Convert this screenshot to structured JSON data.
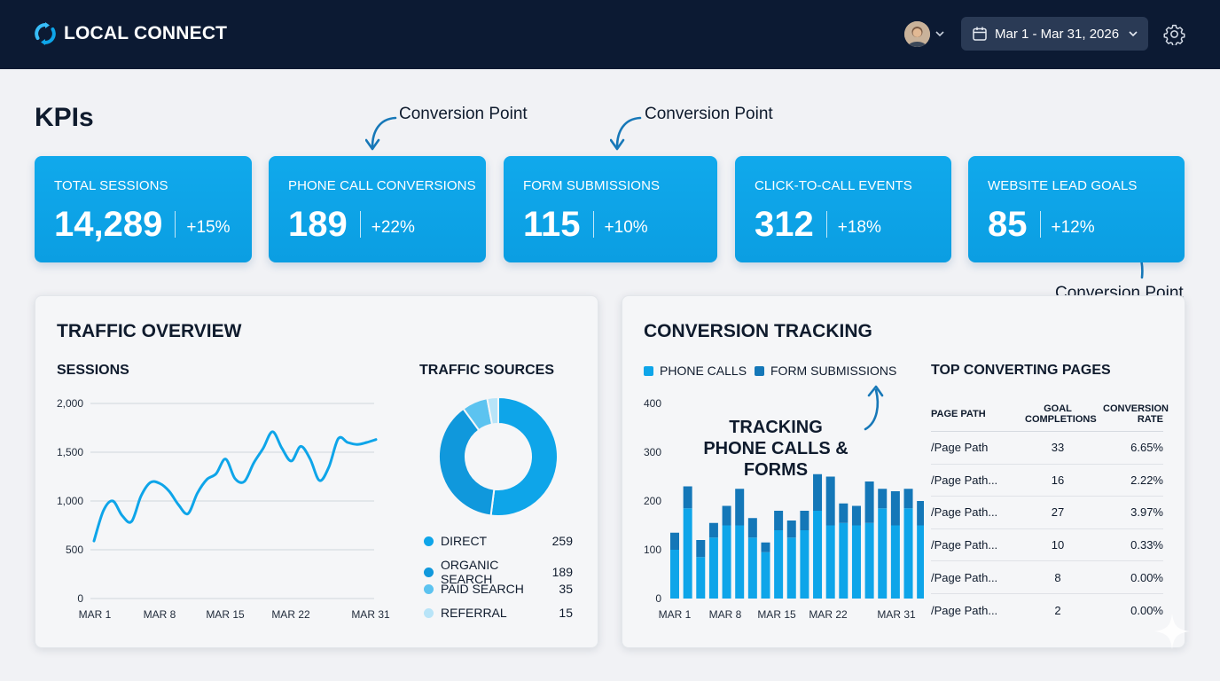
{
  "header": {
    "brand": "LOCAL CONNECT",
    "date_range": "Mar 1 - Mar 31, 2026",
    "user_avatar": "avatar",
    "icons": {
      "logo": "refresh-logo-icon",
      "calendar": "calendar-icon",
      "settings": "gear-icon",
      "caret": "chevron-down-icon"
    }
  },
  "kpis": {
    "heading": "KPIs",
    "annotation": "Conversion Point",
    "cards": [
      {
        "label": "TOTAL SESSIONS",
        "value": "14,289",
        "delta": "+15%"
      },
      {
        "label": "PHONE CALL CONVERSIONS",
        "value": "189",
        "delta": "+22%"
      },
      {
        "label": "FORM SUBMISSIONS",
        "value": "115",
        "delta": "+10%"
      },
      {
        "label": "CLICK-TO-CALL EVENTS",
        "value": "312",
        "delta": "+18%"
      },
      {
        "label": "WEBSITE LEAD GOALS",
        "value": "85",
        "delta": "+12%"
      }
    ]
  },
  "traffic": {
    "title": "TRAFFIC OVERVIEW",
    "sessions_title": "SESSIONS",
    "sources_title": "TRAFFIC SOURCES"
  },
  "conversion": {
    "title": "CONVERSION TRACKING",
    "legend": [
      "PHONE CALLS",
      "FORM SUBMISSIONS"
    ],
    "callout": "TRACKING PHONE CALLS & FORMS",
    "top_pages": {
      "title": "TOP CONVERTING PAGES",
      "headers": [
        "PAGE PATH",
        "GOAL COMPLETIONS",
        "CONVERSION RATE"
      ],
      "rows": [
        [
          "/Page Path",
          "33",
          "6.65%"
        ],
        [
          "/Page Path...",
          "16",
          "2.22%"
        ],
        [
          "/Page Path...",
          "27",
          "3.97%"
        ],
        [
          "/Page Path...",
          "10",
          "0.33%"
        ],
        [
          "/Page Path...",
          "8",
          "0.00%"
        ],
        [
          "/Page Path...",
          "2",
          "0.00%"
        ]
      ]
    }
  },
  "colors": {
    "accent": "#0ea5e9",
    "navy": "#0c1a33",
    "dark_blue": "#1477b8"
  },
  "chart_data": [
    {
      "type": "line",
      "title": "SESSIONS",
      "x": [
        1,
        2,
        3,
        4,
        5,
        6,
        7,
        8,
        9,
        10,
        11,
        12,
        13,
        14,
        15,
        16,
        17,
        18,
        19,
        20,
        21,
        22,
        23,
        24,
        25,
        26,
        27,
        28,
        29,
        30,
        31
      ],
      "values": [
        590,
        900,
        1000,
        850,
        790,
        1050,
        1190,
        1180,
        1100,
        960,
        870,
        1080,
        1220,
        1280,
        1430,
        1230,
        1200,
        1390,
        1540,
        1710,
        1540,
        1410,
        1560,
        1430,
        1210,
        1350,
        1640,
        1600,
        1580,
        1600,
        1630
      ],
      "x_tick_labels": [
        "MAR 1",
        "MAR 8",
        "MAR 15",
        "MAR 22",
        "MAR 31"
      ],
      "y_tick_labels": [
        "0",
        "500",
        "1,000",
        "1,500",
        "2,000"
      ],
      "ylim": [
        0,
        2000
      ]
    },
    {
      "type": "pie",
      "title": "TRAFFIC SOURCES",
      "categories": [
        "DIRECT",
        "ORGANIC SEARCH",
        "PAID SEARCH",
        "REFERRAL"
      ],
      "values": [
        259,
        189,
        35,
        15
      ],
      "colors": [
        "#0ea5e9",
        "#1098dc",
        "#5cc3f0",
        "#b8e4f8"
      ]
    },
    {
      "type": "bar",
      "title": "CONVERSION TRACKING",
      "categories": [
        1,
        2,
        3,
        4,
        5,
        6,
        7,
        8,
        9,
        10,
        11,
        12,
        13,
        14,
        15,
        16,
        17,
        18,
        19,
        20,
        21,
        22
      ],
      "x_tick_labels": [
        "MAR 1",
        "MAR 8",
        "MAR 15",
        "MAR 22",
        "MAR 31"
      ],
      "y_tick_labels": [
        "0",
        "100",
        "200",
        "300",
        "400"
      ],
      "ylim": [
        0,
        400
      ],
      "series": [
        {
          "name": "PHONE CALLS",
          "values": [
            100,
            185,
            85,
            125,
            150,
            150,
            125,
            95,
            140,
            125,
            140,
            180,
            150,
            155,
            150,
            155,
            185,
            150,
            185,
            150,
            250,
            150
          ]
        },
        {
          "name": "FORM SUBMISSIONS",
          "values": [
            35,
            45,
            35,
            30,
            40,
            75,
            40,
            20,
            40,
            35,
            40,
            75,
            100,
            40,
            40,
            85,
            40,
            70,
            40,
            50,
            85,
            50
          ]
        }
      ]
    }
  ]
}
